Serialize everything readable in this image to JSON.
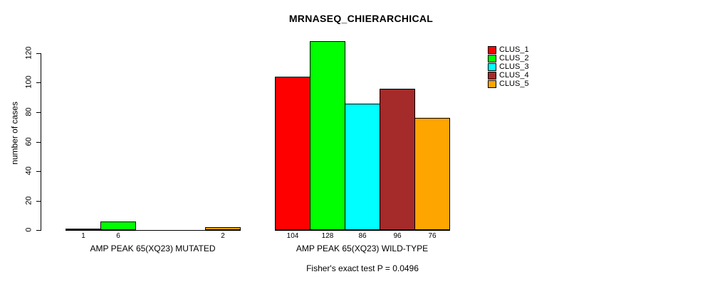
{
  "chart_data": {
    "type": "bar",
    "title": "MRNASEQ_CHIERARCHICAL",
    "ylabel": "number of cases",
    "xlabel": "",
    "ylim": [
      0,
      120
    ],
    "yticks": [
      0,
      20,
      40,
      60,
      80,
      100,
      120
    ],
    "grid": "off",
    "legend_position": "top-right",
    "legend": [
      "CLUS_1",
      "CLUS_2",
      "CLUS_3",
      "CLUS_4",
      "CLUS_5"
    ],
    "series_colors": [
      "#FF0000",
      "#00FF00",
      "#00FFFF",
      "#A52A2A",
      "#FFA500"
    ],
    "groups": [
      {
        "label": "AMP PEAK 65(XQ23) MUTATED",
        "values": [
          1,
          6,
          0,
          0,
          2
        ],
        "value_labels": [
          "1",
          "6",
          "",
          "",
          "2"
        ]
      },
      {
        "label": "AMP PEAK 65(XQ23) WILD-TYPE",
        "values": [
          104,
          128,
          86,
          96,
          76
        ],
        "value_labels": [
          "104",
          "128",
          "86",
          "96",
          "76"
        ]
      }
    ],
    "footnote": "Fisher's exact test P = 0.0496",
    "colors": {
      "background": "#FFFFFF",
      "text": "#000000",
      "axis": "#000000"
    }
  }
}
